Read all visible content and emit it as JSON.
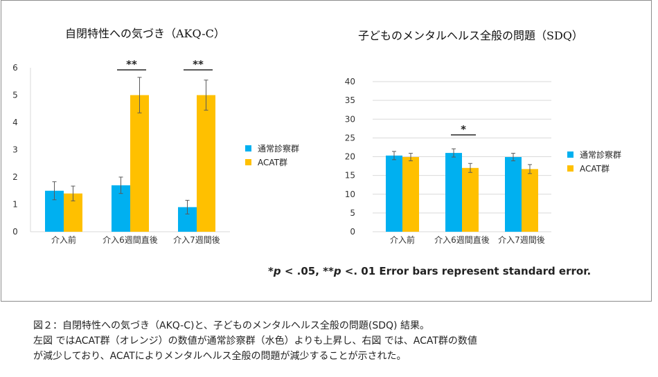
{
  "colors": {
    "series1": "#00b0f0",
    "series2": "#ffc000",
    "axis": "#d9d9d9",
    "error": "#595959",
    "sig": "#222222"
  },
  "chart_data": [
    {
      "type": "bar",
      "title": "自閉特性への気づき（AKQ-C）",
      "categories": [
        "介入前",
        "介入6週間直後",
        "介入7週間後"
      ],
      "series": [
        {
          "name": "通常診察群",
          "values": [
            1.5,
            1.7,
            0.9
          ],
          "errors": [
            0.33,
            0.3,
            0.25
          ]
        },
        {
          "name": "ACAT群",
          "values": [
            1.4,
            5.0,
            5.0
          ],
          "errors": [
            0.27,
            0.65,
            0.55
          ]
        }
      ],
      "ylim": [
        0,
        6
      ],
      "yticks": [
        0,
        1,
        2,
        3,
        4,
        5,
        6
      ],
      "significance": [
        {
          "category_index": 1,
          "label": "**"
        },
        {
          "category_index": 2,
          "label": "**"
        }
      ],
      "legend": [
        "通常診察群",
        "ACAT群"
      ],
      "gridlines": false
    },
    {
      "type": "bar",
      "title": "子どものメンタルヘルス全般の問題（SDQ）",
      "categories": [
        "介入前",
        "介入6週間直後",
        "介入7週間後"
      ],
      "series": [
        {
          "name": "通常診察群",
          "values": [
            20.3,
            21.0,
            19.9
          ],
          "errors": [
            1.1,
            1.1,
            1.0
          ]
        },
        {
          "name": "ACAT群",
          "values": [
            19.9,
            17.0,
            16.7
          ],
          "errors": [
            1.0,
            1.2,
            1.2
          ]
        }
      ],
      "ylim": [
        0,
        40
      ],
      "yticks": [
        0,
        5,
        10,
        15,
        20,
        25,
        30,
        35,
        40
      ],
      "significance": [
        {
          "category_index": 1,
          "label": "*"
        }
      ],
      "legend": [
        "通常診察群",
        "ACAT群"
      ],
      "gridlines": true
    }
  ],
  "footnote": {
    "p1": "p",
    "t1": " < .05, ",
    "stars": "**",
    "p2": "p",
    "t2": " <. 01 Error bars represent standard error.",
    "star1": "*"
  },
  "caption": {
    "line1": "図２：自閉特性への気づき（AKQ-C)と、子どものメンタルヘルス全般の問題(SDQ) 結果。",
    "line2": "左図 ではACAT群（オレンジ）の数値が通常診察群（水色）よりも上昇し、右図 では、ACAT群の数値",
    "line3": "が減少しており、ACATによりメンタルヘルス全般の問題が減少することが示された。"
  }
}
